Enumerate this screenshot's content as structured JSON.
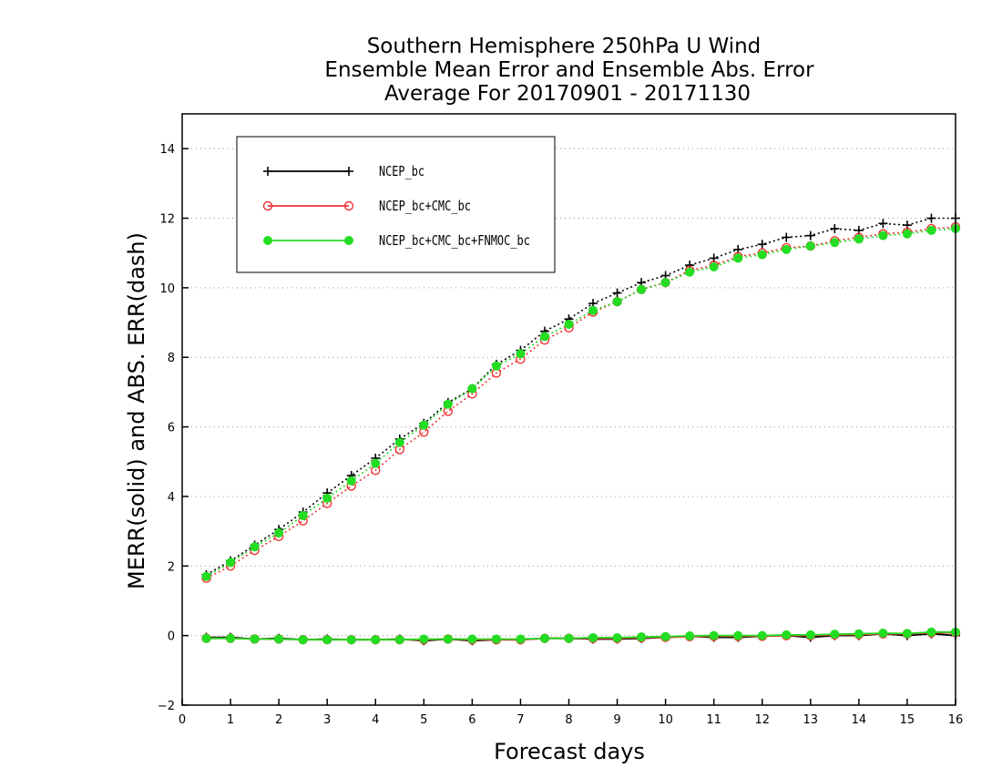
{
  "chart_data": {
    "type": "line",
    "title": [
      "Southern Hemisphere 250hPa U Wind",
      "Ensemble Mean Error and Ensemble Abs. Error",
      "Average For 20170901 - 20171130"
    ],
    "xlabel": "Forecast days",
    "ylabel": "MERR(solid) and ABS. ERR(dash)",
    "xlim": [
      0,
      16
    ],
    "ylim": [
      -2,
      15
    ],
    "xticks": [
      "0",
      "1",
      "2",
      "3",
      "4",
      "5",
      "6",
      "7",
      "8",
      "9",
      "10",
      "11",
      "12",
      "13",
      "14",
      "15",
      "16"
    ],
    "yticks": [
      "−2",
      "0",
      "2",
      "4",
      "6",
      "8",
      "10",
      "12",
      "14"
    ],
    "grid": "horizontal dotted",
    "legend_position": "top-left",
    "x": [
      0.5,
      1,
      1.5,
      2,
      2.5,
      3,
      3.5,
      4,
      4.5,
      5,
      5.5,
      6,
      6.5,
      7,
      7.5,
      8,
      8.5,
      9,
      9.5,
      10,
      10.5,
      11,
      11.5,
      12,
      12.5,
      13,
      13.5,
      14,
      14.5,
      15,
      15.5,
      16
    ],
    "series": [
      {
        "name": "NCEP_bc",
        "color": "#000000",
        "marker": "plus",
        "abs_err": [
          1.75,
          2.15,
          2.6,
          3.05,
          3.55,
          4.1,
          4.6,
          5.1,
          5.65,
          6.1,
          6.7,
          7.1,
          7.8,
          8.2,
          8.75,
          9.1,
          9.55,
          9.85,
          10.15,
          10.35,
          10.65,
          10.85,
          11.1,
          11.25,
          11.45,
          11.5,
          11.7,
          11.65,
          11.85,
          11.8,
          12.0,
          12.0
        ],
        "mean_err": [
          -0.05,
          -0.05,
          -0.1,
          -0.08,
          -0.12,
          -0.1,
          -0.12,
          -0.12,
          -0.1,
          -0.15,
          -0.1,
          -0.15,
          -0.12,
          -0.12,
          -0.08,
          -0.08,
          -0.1,
          -0.1,
          -0.08,
          -0.05,
          -0.02,
          -0.05,
          -0.05,
          -0.02,
          0.0,
          -0.05,
          0.0,
          0.0,
          0.05,
          0.0,
          0.05,
          0.0
        ]
      },
      {
        "name": "NCEP_bc+CMC_bc",
        "color": "#ee3333",
        "marker": "circle-open",
        "abs_err": [
          1.65,
          2.0,
          2.45,
          2.85,
          3.3,
          3.8,
          4.3,
          4.75,
          5.35,
          5.85,
          6.45,
          6.95,
          7.55,
          7.95,
          8.5,
          8.85,
          9.3,
          9.6,
          9.95,
          10.15,
          10.5,
          10.65,
          10.9,
          11.0,
          11.15,
          11.2,
          11.35,
          11.45,
          11.55,
          11.6,
          11.7,
          11.75
        ],
        "mean_err": [
          -0.08,
          -0.08,
          -0.1,
          -0.1,
          -0.12,
          -0.12,
          -0.12,
          -0.12,
          -0.12,
          -0.12,
          -0.1,
          -0.12,
          -0.12,
          -0.12,
          -0.08,
          -0.08,
          -0.08,
          -0.08,
          -0.06,
          -0.05,
          -0.03,
          -0.02,
          -0.02,
          -0.02,
          0.0,
          0.0,
          0.02,
          0.03,
          0.05,
          0.05,
          0.08,
          0.08
        ]
      },
      {
        "name": "NCEP_bc+CMC_bc+FNMOC_bc",
        "color": "#22dd22",
        "marker": "circle-filled",
        "abs_err": [
          1.7,
          2.1,
          2.55,
          2.95,
          3.45,
          3.95,
          4.45,
          4.95,
          5.55,
          6.05,
          6.65,
          7.1,
          7.75,
          8.1,
          8.6,
          8.95,
          9.35,
          9.6,
          9.95,
          10.15,
          10.45,
          10.6,
          10.85,
          10.95,
          11.1,
          11.2,
          11.3,
          11.4,
          11.5,
          11.55,
          11.65,
          11.7
        ],
        "mean_err": [
          -0.08,
          -0.08,
          -0.1,
          -0.1,
          -0.12,
          -0.12,
          -0.12,
          -0.12,
          -0.12,
          -0.1,
          -0.1,
          -0.1,
          -0.1,
          -0.1,
          -0.08,
          -0.08,
          -0.06,
          -0.06,
          -0.04,
          -0.03,
          -0.01,
          0.0,
          0.0,
          0.0,
          0.02,
          0.02,
          0.04,
          0.05,
          0.07,
          0.06,
          0.1,
          0.1
        ]
      }
    ]
  }
}
